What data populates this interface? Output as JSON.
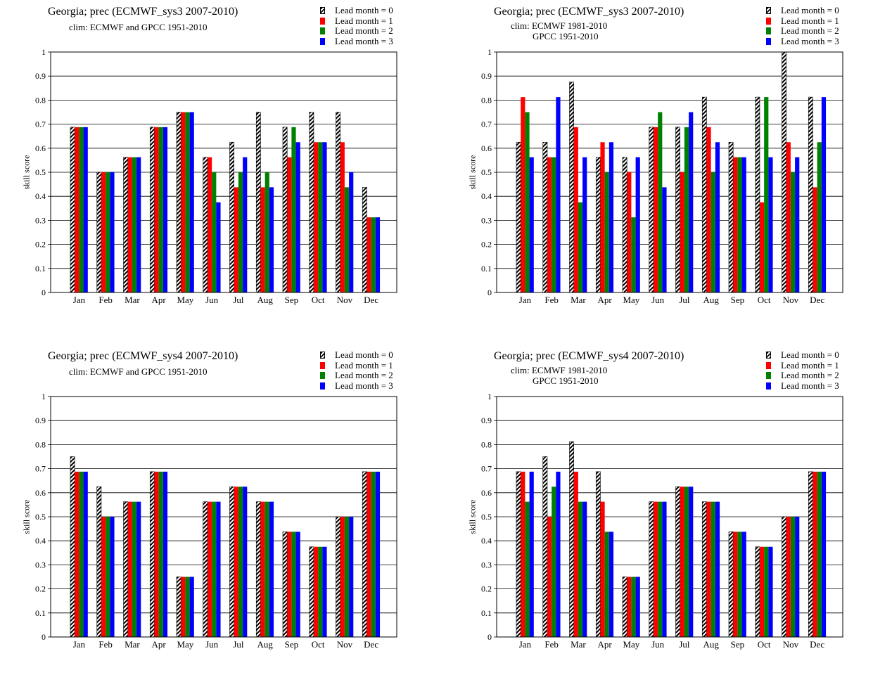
{
  "legend": {
    "items": [
      {
        "label": "Lead month = 0",
        "color": "#000000",
        "pattern": "hatch"
      },
      {
        "label": "Lead month = 1",
        "color": "#ff0000"
      },
      {
        "label": "Lead month = 2",
        "color": "#008000"
      },
      {
        "label": "Lead month = 3",
        "color": "#0000ff"
      }
    ]
  },
  "chart_data": [
    {
      "type": "bar",
      "title": "Georgia; prec (ECMWF_sys3 2007-2010)",
      "clim_lines": [
        "clim: ECMWF and GPCC 1951-2010"
      ],
      "ylabel": "skill  score",
      "ylim": [
        0,
        1
      ],
      "yticks": [
        "0",
        "0.1",
        "0.2",
        "0.3",
        "0.4",
        "0.5",
        "0.6",
        "0.7",
        "0.8",
        "0.9",
        "1"
      ],
      "grid": true,
      "legend_position": "top-right",
      "categories": [
        "Jan",
        "Feb",
        "Mar",
        "Apr",
        "May",
        "Jun",
        "Jul",
        "Aug",
        "Sep",
        "Oct",
        "Nov",
        "Dec"
      ],
      "series": [
        {
          "name": "Lead month = 0",
          "values": [
            0.6875,
            0.5,
            0.5625,
            0.6875,
            0.75,
            0.5625,
            0.625,
            0.75,
            0.6875,
            0.75,
            0.75,
            0.4375
          ]
        },
        {
          "name": "Lead month = 1",
          "values": [
            0.6875,
            0.5,
            0.5625,
            0.6875,
            0.75,
            0.5625,
            0.4375,
            0.4375,
            0.5625,
            0.625,
            0.625,
            0.3125
          ]
        },
        {
          "name": "Lead month = 2",
          "values": [
            0.6875,
            0.5,
            0.5625,
            0.6875,
            0.75,
            0.5,
            0.5,
            0.5,
            0.6875,
            0.625,
            0.4375,
            0.3125
          ]
        },
        {
          "name": "Lead month = 3",
          "values": [
            0.6875,
            0.5,
            0.5625,
            0.6875,
            0.75,
            0.375,
            0.5625,
            0.4375,
            0.625,
            0.625,
            0.5,
            0.3125
          ]
        }
      ]
    },
    {
      "type": "bar",
      "title": "Georgia; prec (ECMWF_sys3 2007-2010)",
      "clim_lines": [
        "clim: ECMWF 1981-2010",
        "GPCC 1951-2010"
      ],
      "ylabel": "skill  score",
      "ylim": [
        0,
        1
      ],
      "yticks": [
        "0",
        "0.1",
        "0.2",
        "0.3",
        "0.4",
        "0.5",
        "0.6",
        "0.7",
        "0.8",
        "0.9",
        "1"
      ],
      "grid": true,
      "legend_position": "top-right",
      "categories": [
        "Jan",
        "Feb",
        "Mar",
        "Apr",
        "May",
        "Jun",
        "Jul",
        "Aug",
        "Sep",
        "Oct",
        "Nov",
        "Dec"
      ],
      "series": [
        {
          "name": "Lead month = 0",
          "values": [
            0.625,
            0.625,
            0.875,
            0.5625,
            0.5625,
            0.6875,
            0.6875,
            0.8125,
            0.625,
            0.8125,
            1.0,
            0.8125
          ]
        },
        {
          "name": "Lead month = 1",
          "values": [
            0.8125,
            0.5625,
            0.6875,
            0.625,
            0.5,
            0.6875,
            0.5,
            0.6875,
            0.5625,
            0.375,
            0.625,
            0.4375
          ]
        },
        {
          "name": "Lead month = 2",
          "values": [
            0.75,
            0.5625,
            0.375,
            0.5,
            0.3125,
            0.75,
            0.6875,
            0.5,
            0.5625,
            0.8125,
            0.5,
            0.625
          ]
        },
        {
          "name": "Lead month = 3",
          "values": [
            0.5625,
            0.8125,
            0.5625,
            0.625,
            0.5625,
            0.4375,
            0.75,
            0.625,
            0.5625,
            0.5625,
            0.5625,
            0.8125
          ]
        }
      ]
    },
    {
      "type": "bar",
      "title": "Georgia; prec (ECMWF_sys4 2007-2010)",
      "clim_lines": [
        "clim: ECMWF and GPCC 1951-2010"
      ],
      "ylabel": "skill  score",
      "ylim": [
        0,
        1
      ],
      "yticks": [
        "0",
        "0.1",
        "0.2",
        "0.3",
        "0.4",
        "0.5",
        "0.6",
        "0.7",
        "0.8",
        "0.9",
        "1"
      ],
      "grid": true,
      "legend_position": "top-right",
      "categories": [
        "Jan",
        "Feb",
        "Mar",
        "Apr",
        "May",
        "Jun",
        "Jul",
        "Aug",
        "Sep",
        "Oct",
        "Nov",
        "Dec"
      ],
      "series": [
        {
          "name": "Lead month = 0",
          "values": [
            0.75,
            0.625,
            0.5625,
            0.6875,
            0.25,
            0.5625,
            0.625,
            0.5625,
            0.4375,
            0.375,
            0.5,
            0.6875
          ]
        },
        {
          "name": "Lead month = 1",
          "values": [
            0.6875,
            0.5,
            0.5625,
            0.6875,
            0.25,
            0.5625,
            0.625,
            0.5625,
            0.4375,
            0.375,
            0.5,
            0.6875
          ]
        },
        {
          "name": "Lead month = 2",
          "values": [
            0.6875,
            0.5,
            0.5625,
            0.6875,
            0.25,
            0.5625,
            0.625,
            0.5625,
            0.4375,
            0.375,
            0.5,
            0.6875
          ]
        },
        {
          "name": "Lead month = 3",
          "values": [
            0.6875,
            0.5,
            0.5625,
            0.6875,
            0.25,
            0.5625,
            0.625,
            0.5625,
            0.4375,
            0.375,
            0.5,
            0.6875
          ]
        }
      ]
    },
    {
      "type": "bar",
      "title": "Georgia; prec (ECMWF_sys4 2007-2010)",
      "clim_lines": [
        "clim: ECMWF 1981-2010",
        "GPCC 1951-2010"
      ],
      "ylabel": "skill  score",
      "ylim": [
        0,
        1
      ],
      "yticks": [
        "0",
        "0.1",
        "0.2",
        "0.3",
        "0.4",
        "0.5",
        "0.6",
        "0.7",
        "0.8",
        "0.9",
        "1"
      ],
      "grid": true,
      "legend_position": "top-right",
      "categories": [
        "Jan",
        "Feb",
        "Mar",
        "Apr",
        "May",
        "Jun",
        "Jul",
        "Aug",
        "Sep",
        "Oct",
        "Nov",
        "Dec"
      ],
      "series": [
        {
          "name": "Lead month = 0",
          "values": [
            0.6875,
            0.75,
            0.8125,
            0.6875,
            0.25,
            0.5625,
            0.625,
            0.5625,
            0.4375,
            0.375,
            0.5,
            0.6875
          ]
        },
        {
          "name": "Lead month = 1",
          "values": [
            0.6875,
            0.5,
            0.6875,
            0.5625,
            0.25,
            0.5625,
            0.625,
            0.5625,
            0.4375,
            0.375,
            0.5,
            0.6875
          ]
        },
        {
          "name": "Lead month = 2",
          "values": [
            0.5625,
            0.625,
            0.5625,
            0.4375,
            0.25,
            0.5625,
            0.625,
            0.5625,
            0.4375,
            0.375,
            0.5,
            0.6875
          ]
        },
        {
          "name": "Lead month = 3",
          "values": [
            0.6875,
            0.6875,
            0.5625,
            0.4375,
            0.25,
            0.5625,
            0.625,
            0.5625,
            0.4375,
            0.375,
            0.5,
            0.6875
          ]
        }
      ]
    }
  ]
}
